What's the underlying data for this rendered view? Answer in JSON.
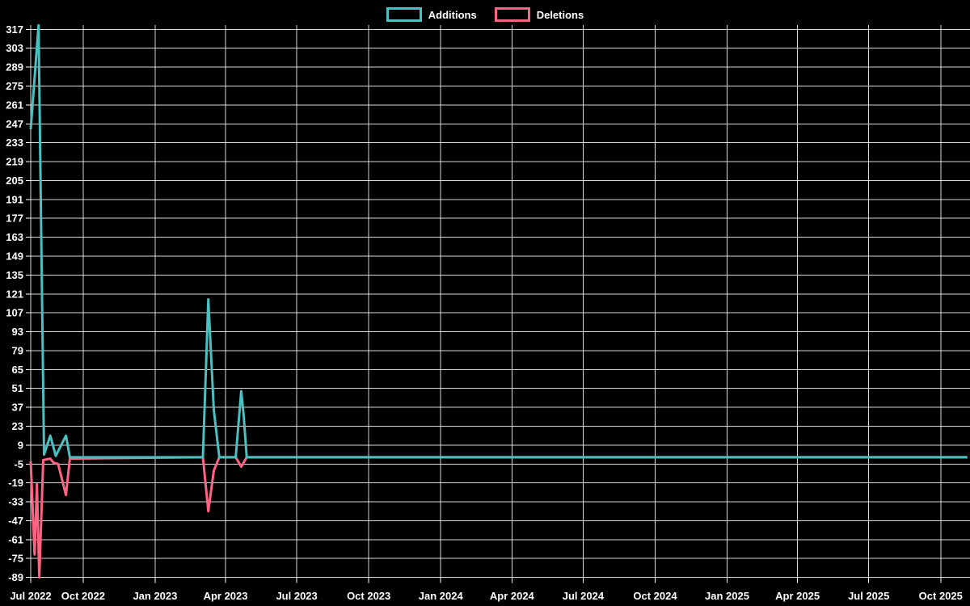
{
  "legend": {
    "items": [
      {
        "id": "additions",
        "label": "Additions",
        "color": "#4BC0C0"
      },
      {
        "id": "deletions",
        "label": "Deletions",
        "color": "#FF6384"
      }
    ]
  },
  "chart_data": {
    "type": "line",
    "title": "",
    "xlabel": "",
    "ylabel": "",
    "background": "#000000",
    "grid": true,
    "grid_color": "#ffffff",
    "legend_position": "top-center",
    "x_axis": {
      "range": [
        "2022-07-26",
        "2025-11-04"
      ],
      "ticks": [
        {
          "label": "Jul 2022",
          "date": "2022-07-26"
        },
        {
          "label": "Oct 2022",
          "date": "2022-10-01"
        },
        {
          "label": "Jan 2023",
          "date": "2023-01-01"
        },
        {
          "label": "Apr 2023",
          "date": "2023-04-01"
        },
        {
          "label": "Jul 2023",
          "date": "2023-07-01"
        },
        {
          "label": "Oct 2023",
          "date": "2023-10-01"
        },
        {
          "label": "Jan 2024",
          "date": "2024-01-01"
        },
        {
          "label": "Apr 2024",
          "date": "2024-04-01"
        },
        {
          "label": "Jul 2024",
          "date": "2024-07-01"
        },
        {
          "label": "Oct 2024",
          "date": "2024-10-01"
        },
        {
          "label": "Jan 2025",
          "date": "2025-01-01"
        },
        {
          "label": "Apr 2025",
          "date": "2025-04-01"
        },
        {
          "label": "Jul 2025",
          "date": "2025-07-01"
        },
        {
          "label": "Oct 2025",
          "date": "2025-10-01"
        }
      ]
    },
    "y_axis": {
      "range": [
        -89,
        320.2
      ],
      "tick_step": 14,
      "ticks": [
        317,
        303,
        289,
        275,
        261,
        247,
        233,
        219,
        205,
        191,
        177,
        163,
        149,
        135,
        121,
        107,
        93,
        79,
        65,
        51,
        37,
        23,
        9,
        -5,
        -19,
        -33,
        -47,
        -61,
        -75,
        -89
      ]
    },
    "series": [
      {
        "name": "Additions",
        "color": "#4BC0C0",
        "points": [
          [
            "2022-07-26",
            243
          ],
          [
            "2022-08-05",
            320
          ],
          [
            "2022-08-12",
            2
          ],
          [
            "2022-08-20",
            16
          ],
          [
            "2022-08-27",
            1
          ],
          [
            "2022-09-09",
            16
          ],
          [
            "2022-09-14",
            0
          ],
          [
            "2023-03-03",
            0
          ],
          [
            "2023-03-10",
            117
          ],
          [
            "2023-03-17",
            35
          ],
          [
            "2023-03-24",
            0
          ],
          [
            "2023-04-14",
            0
          ],
          [
            "2023-04-21",
            49
          ],
          [
            "2023-04-24",
            32
          ],
          [
            "2023-04-28",
            0
          ],
          [
            "2025-11-04",
            0
          ]
        ]
      },
      {
        "name": "Deletions",
        "color": "#FF6384",
        "points": [
          [
            "2022-07-26",
            -3
          ],
          [
            "2022-07-31",
            -72
          ],
          [
            "2022-08-03",
            -20
          ],
          [
            "2022-08-06",
            -89
          ],
          [
            "2022-08-11",
            -2
          ],
          [
            "2022-08-20",
            -1
          ],
          [
            "2022-08-24",
            -4
          ],
          [
            "2022-08-30",
            -5
          ],
          [
            "2022-09-09",
            -28
          ],
          [
            "2022-09-14",
            -1
          ],
          [
            "2023-03-03",
            0
          ],
          [
            "2023-03-10",
            -40
          ],
          [
            "2023-03-17",
            -10
          ],
          [
            "2023-03-24",
            0
          ],
          [
            "2023-04-14",
            0
          ],
          [
            "2023-04-21",
            -7
          ],
          [
            "2023-04-28",
            0
          ],
          [
            "2025-11-04",
            0
          ]
        ]
      }
    ]
  }
}
